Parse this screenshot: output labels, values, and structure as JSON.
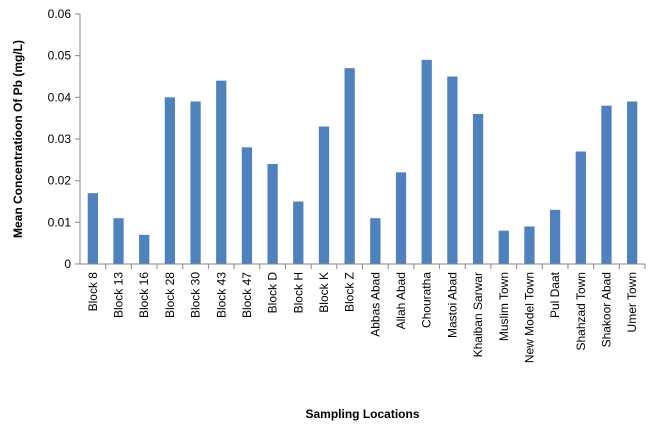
{
  "chart_data": {
    "type": "bar",
    "title": "",
    "xlabel": "Sampling Locations",
    "ylabel": "Mean Concentratioon Of Pb (mg/L)",
    "ylim": [
      0,
      0.06
    ],
    "yticks": [
      "0",
      "0.01",
      "0.02",
      "0.03",
      "0.04",
      "0.05",
      "0.06"
    ],
    "ytick_values": [
      0,
      0.01,
      0.02,
      0.03,
      0.04,
      0.05,
      0.06
    ],
    "grid": false,
    "legend": "none",
    "bar_color": "#4f81bd",
    "categories": [
      "Block 8",
      "Block 13",
      "Block 16",
      "Block 28",
      "Block 30",
      "Block 43",
      "Block 47",
      "Block D",
      "Block H",
      "Block K",
      "Block Z",
      "Abbas Abad",
      "Allah Abad",
      "Chouratha",
      "Mastoi Abad",
      "Khaiban Sarwar",
      "Muslim Town",
      "New Model Town",
      "Pul Daat",
      "Shahzad Town",
      "Shakoor Abad",
      "Umer Town"
    ],
    "values": [
      0.017,
      0.011,
      0.007,
      0.04,
      0.039,
      0.044,
      0.028,
      0.024,
      0.015,
      0.033,
      0.047,
      0.011,
      0.022,
      0.049,
      0.045,
      0.036,
      0.008,
      0.009,
      0.013,
      0.027,
      0.038,
      0.039
    ]
  }
}
